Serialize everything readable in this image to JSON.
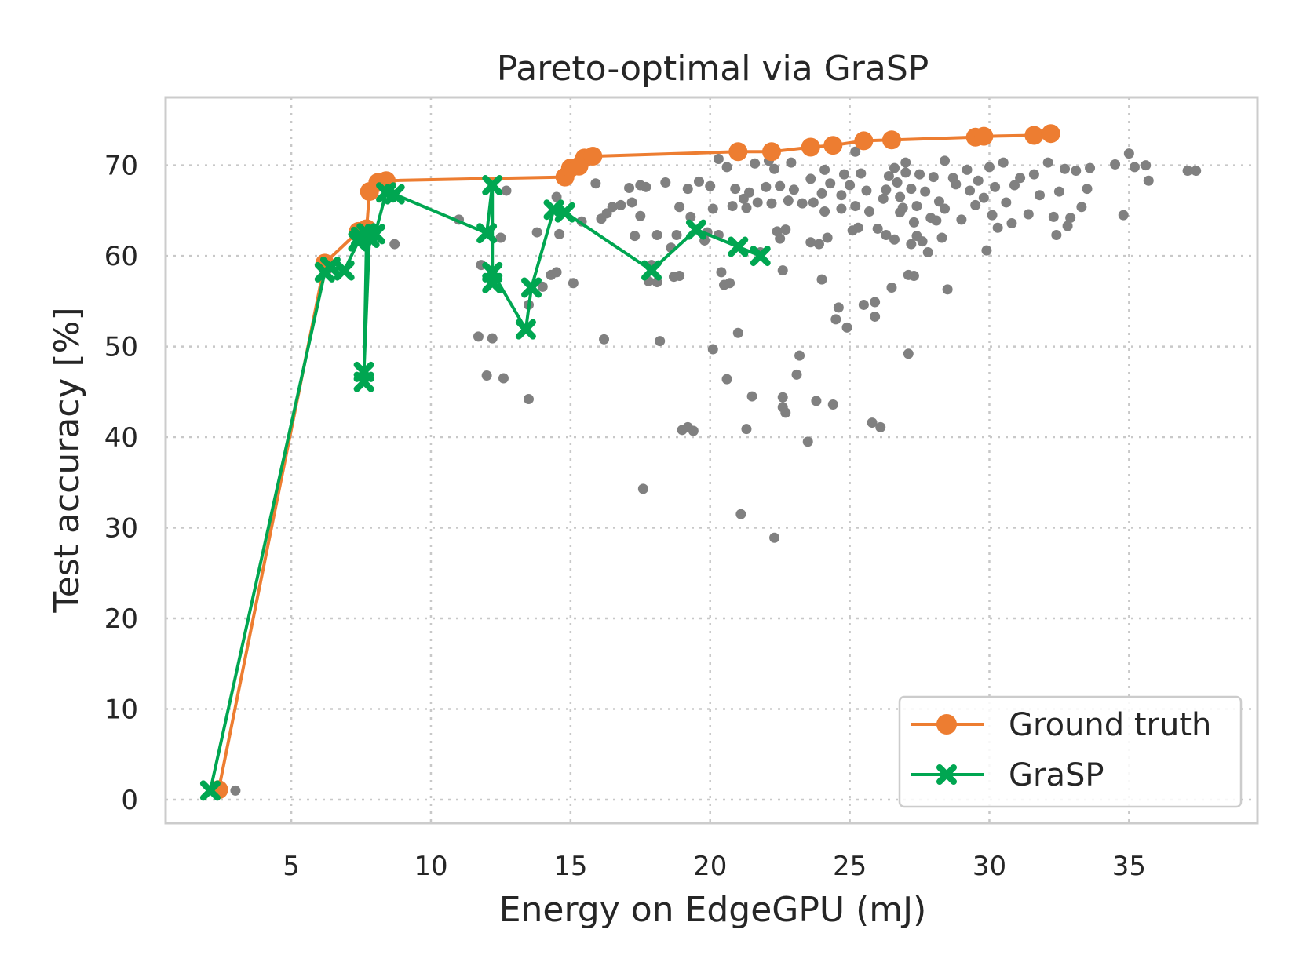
{
  "chart_data": {
    "type": "scatter",
    "title": "Pareto-optimal via GraSP",
    "xlabel": "Energy on EdgeGPU (mJ)",
    "ylabel": "Test accuracy [%]",
    "xlim": [
      0.5,
      39.6
    ],
    "ylim": [
      -2.6,
      77.5
    ],
    "xticks": [
      5,
      10,
      15,
      20,
      25,
      30,
      35
    ],
    "yticks": [
      0,
      10,
      20,
      30,
      40,
      50,
      60,
      70
    ],
    "grid": true,
    "legend_position": "lower-right",
    "colors": {
      "background_points": "#808080",
      "ground_truth": "#ED7D31",
      "grasp": "#00A651"
    },
    "background_points": [
      [
        2.3,
        1.1
      ],
      [
        3.0,
        1.0
      ],
      [
        6.3,
        58.5
      ],
      [
        7.7,
        61.5
      ],
      [
        8.7,
        61.3
      ],
      [
        11.0,
        64.0
      ],
      [
        11.8,
        59.0
      ],
      [
        12.0,
        46.8
      ],
      [
        11.7,
        51.1
      ],
      [
        12.2,
        50.9
      ],
      [
        12.6,
        46.5
      ],
      [
        12.5,
        62.0
      ],
      [
        12.7,
        67.2
      ],
      [
        13.5,
        44.2
      ],
      [
        13.5,
        54.6
      ],
      [
        13.8,
        62.6
      ],
      [
        14.0,
        56.6
      ],
      [
        14.3,
        57.9
      ],
      [
        14.5,
        58.2
      ],
      [
        14.5,
        66.5
      ],
      [
        14.6,
        62.4
      ],
      [
        15.1,
        57.0
      ],
      [
        15.4,
        63.8
      ],
      [
        15.9,
        68.0
      ],
      [
        16.1,
        64.1
      ],
      [
        16.2,
        50.8
      ],
      [
        16.3,
        64.7
      ],
      [
        16.5,
        65.4
      ],
      [
        16.8,
        65.6
      ],
      [
        17.1,
        67.5
      ],
      [
        17.2,
        65.9
      ],
      [
        17.3,
        62.2
      ],
      [
        17.5,
        67.8
      ],
      [
        17.5,
        64.4
      ],
      [
        17.6,
        34.3
      ],
      [
        17.7,
        67.6
      ],
      [
        17.8,
        57.2
      ],
      [
        17.9,
        59.0
      ],
      [
        18.1,
        62.3
      ],
      [
        18.1,
        57.1
      ],
      [
        18.2,
        50.6
      ],
      [
        18.4,
        68.1
      ],
      [
        18.6,
        60.9
      ],
      [
        18.7,
        57.7
      ],
      [
        18.8,
        62.3
      ],
      [
        18.9,
        65.4
      ],
      [
        18.9,
        57.8
      ],
      [
        19.0,
        40.8
      ],
      [
        19.2,
        67.4
      ],
      [
        19.2,
        41.1
      ],
      [
        19.3,
        64.3
      ],
      [
        19.4,
        40.7
      ],
      [
        19.6,
        68.2
      ],
      [
        19.8,
        61.7
      ],
      [
        19.9,
        62.6
      ],
      [
        20.0,
        67.7
      ],
      [
        20.1,
        49.7
      ],
      [
        20.1,
        65.2
      ],
      [
        20.3,
        70.7
      ],
      [
        20.3,
        62.3
      ],
      [
        20.4,
        58.2
      ],
      [
        20.5,
        56.8
      ],
      [
        20.6,
        46.4
      ],
      [
        20.6,
        69.8
      ],
      [
        20.7,
        57.0
      ],
      [
        20.8,
        65.5
      ],
      [
        20.9,
        67.4
      ],
      [
        21.0,
        51.5
      ],
      [
        21.1,
        31.5
      ],
      [
        21.2,
        66.3
      ],
      [
        21.3,
        65.3
      ],
      [
        21.3,
        40.9
      ],
      [
        21.4,
        67.0
      ],
      [
        21.5,
        44.5
      ],
      [
        21.6,
        70.2
      ],
      [
        21.7,
        65.9
      ],
      [
        21.8,
        60.4
      ],
      [
        22.0,
        67.6
      ],
      [
        22.1,
        70.5
      ],
      [
        22.2,
        65.8
      ],
      [
        22.3,
        28.9
      ],
      [
        22.3,
        69.6
      ],
      [
        22.4,
        62.7
      ],
      [
        22.5,
        67.7
      ],
      [
        22.5,
        61.9
      ],
      [
        22.6,
        58.4
      ],
      [
        22.6,
        43.3
      ],
      [
        22.6,
        44.4
      ],
      [
        22.7,
        42.7
      ],
      [
        22.7,
        62.9
      ],
      [
        22.8,
        66.1
      ],
      [
        22.9,
        70.3
      ],
      [
        23.0,
        67.3
      ],
      [
        23.1,
        46.9
      ],
      [
        23.2,
        49.0
      ],
      [
        23.3,
        65.8
      ],
      [
        23.5,
        39.5
      ],
      [
        23.6,
        68.5
      ],
      [
        23.6,
        61.5
      ],
      [
        23.7,
        65.9
      ],
      [
        23.8,
        44.0
      ],
      [
        23.9,
        61.3
      ],
      [
        24.0,
        66.9
      ],
      [
        24.0,
        57.4
      ],
      [
        24.1,
        69.5
      ],
      [
        24.1,
        64.9
      ],
      [
        24.2,
        62.0
      ],
      [
        24.3,
        68.0
      ],
      [
        24.4,
        43.6
      ],
      [
        24.5,
        53.0
      ],
      [
        24.6,
        54.3
      ],
      [
        24.7,
        65.2
      ],
      [
        24.7,
        66.7
      ],
      [
        24.8,
        69.0
      ],
      [
        24.9,
        52.1
      ],
      [
        25.0,
        67.8
      ],
      [
        25.1,
        62.8
      ],
      [
        25.2,
        71.5
      ],
      [
        25.2,
        65.5
      ],
      [
        25.3,
        63.1
      ],
      [
        25.4,
        69.1
      ],
      [
        25.5,
        54.6
      ],
      [
        25.6,
        67.2
      ],
      [
        25.7,
        64.9
      ],
      [
        25.8,
        41.6
      ],
      [
        25.9,
        54.9
      ],
      [
        25.9,
        53.3
      ],
      [
        26.0,
        63.0
      ],
      [
        26.1,
        41.1
      ],
      [
        26.2,
        66.3
      ],
      [
        26.3,
        67.3
      ],
      [
        26.3,
        62.3
      ],
      [
        26.4,
        68.8
      ],
      [
        26.5,
        56.5
      ],
      [
        26.6,
        69.7
      ],
      [
        26.6,
        61.8
      ],
      [
        26.7,
        68.1
      ],
      [
        26.8,
        66.5
      ],
      [
        26.8,
        64.8
      ],
      [
        26.9,
        65.3
      ],
      [
        27.0,
        70.3
      ],
      [
        27.0,
        69.2
      ],
      [
        27.1,
        57.9
      ],
      [
        27.1,
        49.2
      ],
      [
        27.2,
        61.3
      ],
      [
        27.2,
        67.4
      ],
      [
        27.3,
        63.7
      ],
      [
        27.3,
        57.8
      ],
      [
        27.4,
        62.2
      ],
      [
        27.4,
        65.5
      ],
      [
        27.5,
        69.0
      ],
      [
        27.6,
        61.6
      ],
      [
        27.7,
        67.1
      ],
      [
        27.8,
        60.4
      ],
      [
        27.9,
        64.2
      ],
      [
        28.0,
        68.7
      ],
      [
        28.1,
        63.9
      ],
      [
        28.2,
        66.0
      ],
      [
        28.3,
        62.0
      ],
      [
        28.4,
        65.2
      ],
      [
        28.4,
        70.5
      ],
      [
        28.5,
        56.3
      ],
      [
        28.7,
        68.6
      ],
      [
        28.8,
        67.9
      ],
      [
        29.0,
        64.0
      ],
      [
        29.2,
        69.5
      ],
      [
        29.3,
        67.2
      ],
      [
        29.5,
        65.6
      ],
      [
        29.6,
        68.3
      ],
      [
        29.8,
        66.4
      ],
      [
        29.9,
        60.6
      ],
      [
        30.0,
        69.8
      ],
      [
        30.1,
        64.5
      ],
      [
        30.2,
        67.6
      ],
      [
        30.3,
        63.1
      ],
      [
        30.5,
        70.3
      ],
      [
        30.6,
        65.9
      ],
      [
        30.8,
        63.6
      ],
      [
        30.9,
        67.8
      ],
      [
        31.1,
        68.6
      ],
      [
        31.4,
        64.6
      ],
      [
        31.6,
        69.0
      ],
      [
        31.8,
        66.7
      ],
      [
        32.1,
        70.3
      ],
      [
        32.3,
        64.3
      ],
      [
        32.4,
        62.3
      ],
      [
        32.5,
        67.1
      ],
      [
        32.7,
        69.6
      ],
      [
        32.8,
        63.3
      ],
      [
        32.9,
        64.2
      ],
      [
        33.1,
        69.4
      ],
      [
        33.3,
        65.4
      ],
      [
        33.5,
        67.4
      ],
      [
        33.6,
        69.7
      ],
      [
        34.5,
        70.1
      ],
      [
        34.8,
        64.5
      ],
      [
        35.0,
        71.3
      ],
      [
        35.2,
        69.8
      ],
      [
        35.6,
        70.0
      ],
      [
        35.7,
        68.3
      ],
      [
        37.1,
        69.4
      ],
      [
        37.4,
        69.4
      ]
    ],
    "series": [
      {
        "name": "Ground truth",
        "marker": "circle",
        "points": [
          [
            2.4,
            1.1
          ],
          [
            6.2,
            59.2
          ],
          [
            7.4,
            62.7
          ],
          [
            7.7,
            63.0
          ],
          [
            7.8,
            67.1
          ],
          [
            8.1,
            68.1
          ],
          [
            8.4,
            68.3
          ],
          [
            14.8,
            68.7
          ],
          [
            15.0,
            69.7
          ],
          [
            15.3,
            69.9
          ],
          [
            15.5,
            70.8
          ],
          [
            15.8,
            71.0
          ],
          [
            21.0,
            71.5
          ],
          [
            22.2,
            71.5
          ],
          [
            23.6,
            72.0
          ],
          [
            24.4,
            72.2
          ],
          [
            25.5,
            72.7
          ],
          [
            26.5,
            72.8
          ],
          [
            29.5,
            73.1
          ],
          [
            29.8,
            73.2
          ],
          [
            31.6,
            73.3
          ],
          [
            32.2,
            73.5
          ]
        ]
      },
      {
        "name": "GraSP",
        "marker": "x",
        "points": [
          [
            2.1,
            1.0
          ],
          [
            6.2,
            58.2
          ],
          [
            6.4,
            58.8
          ],
          [
            6.9,
            58.4
          ],
          [
            7.4,
            61.6
          ],
          [
            7.5,
            62.1
          ],
          [
            7.7,
            62.5
          ],
          [
            7.6,
            46.1
          ],
          [
            7.6,
            47.2
          ],
          [
            7.8,
            62.0
          ],
          [
            8.0,
            62.4
          ],
          [
            8.4,
            67.0
          ],
          [
            8.7,
            66.8
          ],
          [
            12.0,
            62.5
          ],
          [
            12.2,
            67.8
          ],
          [
            12.2,
            57.0
          ],
          [
            12.2,
            58.2
          ],
          [
            13.4,
            51.9
          ],
          [
            13.6,
            56.5
          ],
          [
            14.4,
            65.1
          ],
          [
            14.8,
            64.8
          ],
          [
            17.9,
            58.4
          ],
          [
            19.5,
            62.9
          ],
          [
            21.0,
            61.0
          ],
          [
            21.8,
            60.0
          ]
        ]
      }
    ]
  }
}
